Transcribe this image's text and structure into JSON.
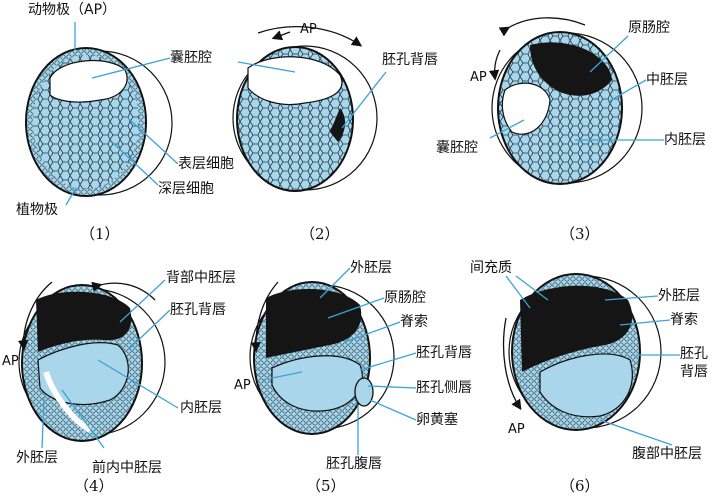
{
  "figures": [
    {
      "caption": "（1）",
      "labels": {
        "top": "动物极（AP）",
        "blastocoel": "囊胚腔",
        "surface_cells": "表层细胞",
        "deep_cells": "深层细胞",
        "vegetal_pole": "植物极"
      }
    },
    {
      "caption": "（2）",
      "labels": {
        "ap": "AP",
        "dorsal_lip": "胚孔背唇"
      }
    },
    {
      "caption": "（3）",
      "labels": {
        "ap": "AP",
        "archenteron": "原肠腔",
        "mesoderm": "中胚层",
        "blastocoel": "囊胚腔",
        "endoderm": "内胚层"
      }
    },
    {
      "caption": "（4）",
      "labels": {
        "ap": "AP",
        "dorsal_mesoderm": "背部中胚层",
        "dorsal_lip": "胚孔背唇",
        "endoderm": "内胚层",
        "ectoderm": "外胚层",
        "anterior_endomesoderm": "前内中胚层"
      }
    },
    {
      "caption": "（5）",
      "labels": {
        "ap": "AP",
        "ectoderm": "外胚层",
        "archenteron": "原肠腔",
        "notochord": "脊索",
        "dorsal_lip": "胚孔背唇",
        "lateral_lip": "胚孔侧唇",
        "yolk_plug": "卵黄塞",
        "ventral_lip": "胚孔腹唇"
      }
    },
    {
      "caption": "（6）",
      "labels": {
        "mesenchyme": "间充质",
        "ap": "AP",
        "ectoderm": "外胚层",
        "notochord": "脊索",
        "dorsal_lip_a": "胚孔",
        "dorsal_lip_b": "背唇",
        "ventral_mesoderm": "腹部中胚层"
      }
    }
  ],
  "colors": {
    "cell_fill": "#a9d6ea",
    "dark_cavity": "#151515",
    "leader_line": "#3aa3d4",
    "outline": "#111111"
  }
}
